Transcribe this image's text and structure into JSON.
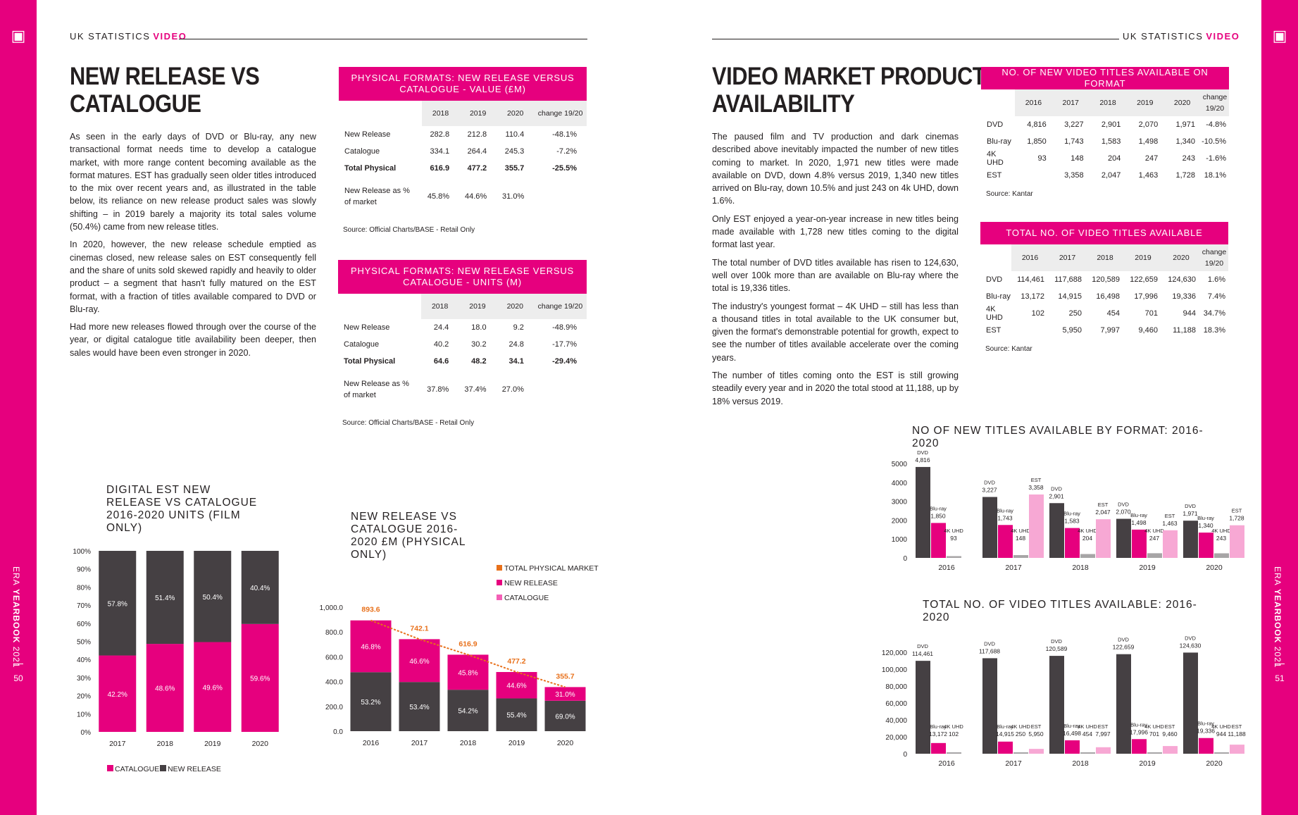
{
  "page_left": {
    "header_prefix": "UK STATISTICS",
    "header_accent": "VIDEO",
    "title_line1": "NEW RELEASE VS",
    "title_line2": "CATALOGUE",
    "paragraphs": [
      "As seen in the early days of DVD or Blu-ray, any new transactional format needs time to develop a catalogue market, with more range content becoming available as the format matures. EST has gradually seen older titles introduced to the mix over recent years and, as illustrated in the table below, its reliance on new release product sales was slowly shifting – in 2019 barely a majority its total sales volume (50.4%) came from new release titles.",
      "In 2020, however, the new release schedule emptied as cinemas closed, new release sales on EST consequently fell and the share of units sold skewed rapidly and heavily to older product – a segment that hasn't fully matured on the EST format, with a fraction of titles available compared to DVD or Blu-ray.",
      "Had more new releases flowed through over the course of the year, or digital catalogue title availability been deeper, then sales would have been even stronger in 2020."
    ],
    "side_label_light": "ERA",
    "side_label_bold": "YEARBOOK",
    "side_label_year": "2021",
    "page_number": "50"
  },
  "page_right": {
    "header_prefix": "UK STATISTICS",
    "header_accent": "VIDEO",
    "title_line1": "VIDEO MARKET PRODUCT",
    "title_line2": "AVAILABILITY",
    "paragraphs": [
      "The paused film and TV production and dark cinemas described above inevitably impacted the number of new titles coming to market. In 2020, 1,971 new titles were made available on DVD, down 4.8% versus 2019, 1,340 new titles arrived on Blu-ray, down 10.5% and just 243 on 4k UHD, down 1.6%.",
      "Only EST enjoyed a year-on-year increase in new titles being made available with 1,728 new titles coming to the digital format last year.",
      "The total number of DVD titles available has risen to 124,630, well over 100k more than are available on Blu-ray where the total is 19,336 titles.",
      "The industry's youngest format – 4K UHD – still has less than a thousand titles in total available to the UK consumer but, given the format's demonstrable potential for growth, expect to see the number of titles available accelerate over the coming years.",
      "The number of titles coming onto the EST is still growing steadily every year and in 2020 the total stood at 11,188, up by 18% versus 2019."
    ],
    "side_label_light": "ERA",
    "side_label_bold": "YEARBOOK",
    "side_label_year": "2021",
    "page_number": "51"
  },
  "tables": {
    "value": {
      "title": "PHYSICAL FORMATS: NEW RELEASE VERSUS CATALOGUE - VALUE (£M)",
      "headers": [
        "2018",
        "2019",
        "2020",
        "change 19/20"
      ],
      "rows": [
        {
          "label": "New Release",
          "cells": [
            "282.8",
            "212.8",
            "110.4",
            "-48.1%"
          ]
        },
        {
          "label": "Catalogue",
          "cells": [
            "334.1",
            "264.4",
            "245.3",
            "-7.2%"
          ]
        },
        {
          "label": "Total Physical",
          "cells": [
            "616.9",
            "477.2",
            "355.7",
            "-25.5%"
          ]
        },
        {
          "label": "New Release as % of market",
          "cells": [
            "45.8%",
            "44.6%",
            "31.0%",
            ""
          ]
        }
      ],
      "source": "Source: Official Charts/BASE - Retail Only"
    },
    "units": {
      "title": "PHYSICAL FORMATS: NEW RELEASE VERSUS CATALOGUE - UNITS (M)",
      "headers": [
        "2018",
        "2019",
        "2020",
        "change 19/20"
      ],
      "rows": [
        {
          "label": "New Release",
          "cells": [
            "24.4",
            "18.0",
            "9.2",
            "-48.9%"
          ]
        },
        {
          "label": "Catalogue",
          "cells": [
            "40.2",
            "30.2",
            "24.8",
            "-17.7%"
          ]
        },
        {
          "label": "Total Physical",
          "cells": [
            "64.6",
            "48.2",
            "34.1",
            "-29.4%"
          ]
        },
        {
          "label": "New Release as % of market",
          "cells": [
            "37.8%",
            "37.4%",
            "27.0%",
            ""
          ]
        }
      ],
      "source": "Source: Official Charts/BASE - Retail Only"
    },
    "new_titles": {
      "title": "NO. OF NEW VIDEO TITLES AVAILABLE ON FORMAT",
      "headers": [
        "2016",
        "2017",
        "2018",
        "2019",
        "2020",
        "change 19/20"
      ],
      "rows": [
        {
          "label": "DVD",
          "cells": [
            "4,816",
            "3,227",
            "2,901",
            "2,070",
            "1,971",
            "-4.8%"
          ]
        },
        {
          "label": "Blu-ray",
          "cells": [
            "1,850",
            "1,743",
            "1,583",
            "1,498",
            "1,340",
            "-10.5%"
          ]
        },
        {
          "label": "4K UHD",
          "cells": [
            "93",
            "148",
            "204",
            "247",
            "243",
            "-1.6%"
          ]
        },
        {
          "label": "EST",
          "cells": [
            "",
            "3,358",
            "2,047",
            "1,463",
            "1,728",
            "18.1%"
          ]
        }
      ],
      "source": "Source: Kantar"
    },
    "total_titles": {
      "title": "TOTAL NO. OF VIDEO TITLES AVAILABLE",
      "headers": [
        "2016",
        "2017",
        "2018",
        "2019",
        "2020",
        "change 19/20"
      ],
      "rows": [
        {
          "label": "DVD",
          "cells": [
            "114,461",
            "117,688",
            "120,589",
            "122,659",
            "124,630",
            "1.6%"
          ]
        },
        {
          "label": "Blu-ray",
          "cells": [
            "13,172",
            "14,915",
            "16,498",
            "17,996",
            "19,336",
            "7.4%"
          ]
        },
        {
          "label": "4K UHD",
          "cells": [
            "102",
            "250",
            "454",
            "701",
            "944",
            "34.7%"
          ]
        },
        {
          "label": "EST",
          "cells": [
            "",
            "5,950",
            "7,997",
            "9,460",
            "11,188",
            "18.3%"
          ]
        }
      ],
      "source": "Source: Kantar"
    }
  },
  "chart_data": [
    {
      "type": "bar",
      "stacked": true,
      "title": "DIGITAL EST NEW RELEASE VS CATALOGUE 2016-2020 UNITS (FILM ONLY)",
      "categories": [
        "2017",
        "2018",
        "2019",
        "2020"
      ],
      "series": [
        {
          "name": "CATALOGUE",
          "color": "#e6007e",
          "values": [
            42.2,
            48.6,
            49.6,
            59.6
          ],
          "labels": [
            "42.2%",
            "48.6%",
            "49.6%",
            "59.6%"
          ]
        },
        {
          "name": "NEW RELEASE",
          "color": "#454043",
          "values": [
            57.8,
            51.4,
            50.4,
            40.4
          ],
          "labels": [
            "57.8%",
            "51.4%",
            "50.4%",
            "40.4%"
          ]
        }
      ],
      "yticks": [
        "0%",
        "10%",
        "20%",
        "30%",
        "40%",
        "50%",
        "60%",
        "70%",
        "80%",
        "90%",
        "100%"
      ],
      "ylim": [
        0,
        100
      ],
      "legend": "bottom"
    },
    {
      "type": "bar",
      "stacked": true,
      "title": "NEW RELEASE VS CATALOGUE 2016-2020 £M (PHYSICAL ONLY)",
      "categories": [
        "2016",
        "2017",
        "2018",
        "2019",
        "2020"
      ],
      "series": [
        {
          "name": "CATALOGUE",
          "color": "#454043",
          "values": [
            475.7,
            396.6,
            334.1,
            264.4,
            245.3
          ],
          "labels": [
            "53.2%",
            "53.4%",
            "54.2%",
            "55.4%",
            "69.0%"
          ]
        },
        {
          "name": "NEW RELEASE",
          "color": "#e6007e",
          "values": [
            417.9,
            345.5,
            282.8,
            212.8,
            110.4
          ],
          "labels": [
            "46.8%",
            "46.6%",
            "45.8%",
            "44.6%",
            "31.0%"
          ]
        }
      ],
      "totals": {
        "name": "TOTAL PHYSICAL MARKET",
        "color": "#e8701a",
        "values": [
          893.6,
          742.1,
          616.9,
          477.2,
          355.7
        ],
        "labels": [
          "893.6",
          "742.1",
          "616.9",
          "477.2",
          "355.7"
        ]
      },
      "legend_items": [
        {
          "name": "TOTAL PHYSICAL MARKET",
          "color": "#e8701a"
        },
        {
          "name": "NEW RELEASE",
          "color": "#e6007e"
        },
        {
          "name": "CATALOGUE",
          "color": "#f45fb6"
        }
      ],
      "yticks": [
        "0.0",
        "200.0",
        "400.0",
        "600.0",
        "800.0",
        "1,000.0"
      ],
      "ylim": [
        0,
        1000
      ],
      "legend": "top-right"
    },
    {
      "type": "bar",
      "title": "NO OF NEW TITLES AVAILABLE BY FORMAT: 2016-2020",
      "categories": [
        "2016",
        "2017",
        "2018",
        "2019",
        "2020"
      ],
      "series": [
        {
          "name": "DVD",
          "color": "#454043",
          "values": [
            4816,
            3227,
            2901,
            2070,
            1971
          ],
          "labels": [
            "4,816",
            "3,227",
            "2,901",
            "2,070",
            "1,971"
          ]
        },
        {
          "name": "Blu-ray",
          "color": "#e6007e",
          "values": [
            1850,
            1743,
            1583,
            1498,
            1340
          ],
          "labels": [
            "1,850",
            "1,743",
            "1,583",
            "1,498",
            "1,340"
          ]
        },
        {
          "name": "4K UHD",
          "color": "#a7a5a6",
          "values": [
            93,
            148,
            204,
            247,
            243
          ],
          "labels": [
            "93",
            "148",
            "204",
            "247",
            "243"
          ]
        },
        {
          "name": "EST",
          "color": "#f7a8d4",
          "values": [
            null,
            3358,
            2047,
            1463,
            1728
          ],
          "labels": [
            "",
            "3,358",
            "2,047",
            "1,463",
            "1,728"
          ]
        }
      ],
      "yticks": [
        "0",
        "1000",
        "2000",
        "3000",
        "4000",
        "5000"
      ],
      "ylim": [
        0,
        5000
      ]
    },
    {
      "type": "bar",
      "title": "TOTAL NO. OF VIDEO TITLES AVAILABLE: 2016-2020",
      "categories": [
        "2016",
        "2017",
        "2018",
        "2019",
        "2020"
      ],
      "series": [
        {
          "name": "DVD",
          "color": "#454043",
          "values": [
            114461,
            117688,
            120589,
            122659,
            124630
          ],
          "labels": [
            "114,461",
            "117,688",
            "120,589",
            "122,659",
            "124,630"
          ]
        },
        {
          "name": "Blu-ray",
          "color": "#e6007e",
          "values": [
            13172,
            14915,
            16498,
            17996,
            19336
          ],
          "labels": [
            "13,172",
            "14,915",
            "16,498",
            "17,996",
            "19,336"
          ]
        },
        {
          "name": "4K UHD",
          "color": "#a7a5a6",
          "values": [
            102,
            250,
            454,
            701,
            944
          ],
          "labels": [
            "102",
            "250",
            "454",
            "701",
            "944"
          ]
        },
        {
          "name": "EST",
          "color": "#f7a8d4",
          "values": [
            null,
            5950,
            7997,
            9460,
            11188
          ],
          "labels": [
            "",
            "5,950",
            "7,997",
            "9,460",
            "11,188"
          ]
        }
      ],
      "yticks": [
        "0",
        "20,000",
        "40,000",
        "60,000",
        "80,000",
        "100,000",
        "120,000"
      ],
      "ylim": [
        0,
        125000
      ]
    }
  ]
}
